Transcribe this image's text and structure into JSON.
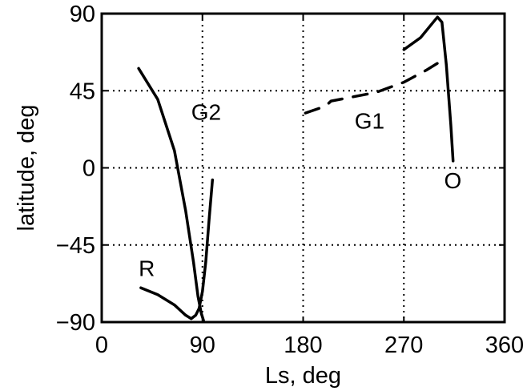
{
  "chart_data": {
    "type": "line",
    "title": "",
    "xlabel": "Ls, deg",
    "ylabel": "latitude, deg",
    "xlim": [
      0,
      360
    ],
    "ylim": [
      -90,
      90
    ],
    "xticks": [
      0,
      90,
      180,
      270,
      360
    ],
    "yticks": [
      -90,
      -45,
      0,
      45,
      90
    ],
    "xtick_labels": [
      "0",
      "90",
      "180",
      "270",
      "360"
    ],
    "ytick_labels": [
      "−90",
      "−45",
      "0",
      "45",
      "90"
    ],
    "grid": "dotted",
    "series": [
      {
        "id": "G2",
        "x": [
          33,
          50,
          65,
          75,
          82,
          86,
          89,
          91
        ],
        "y": [
          58,
          40,
          10,
          -25,
          -55,
          -75,
          -85,
          -89
        ],
        "dash": "solid"
      },
      {
        "id": "R",
        "x": [
          35,
          50,
          65,
          75,
          80,
          84,
          87,
          90,
          93,
          96,
          99
        ],
        "y": [
          -70,
          -74,
          -80,
          -86,
          -88,
          -86,
          -82,
          -72,
          -55,
          -30,
          -7
        ],
        "dash": "solid"
      },
      {
        "id": "G1",
        "x": [
          182,
          200,
          205,
          245,
          270,
          290,
          300
        ],
        "y": [
          32,
          36,
          39,
          44,
          50,
          57,
          61
        ],
        "dash": "dashed"
      },
      {
        "id": "O",
        "x": [
          270,
          285,
          295,
          300,
          304,
          308,
          312,
          314
        ],
        "y": [
          69,
          76,
          84,
          88,
          85,
          60,
          25,
          4
        ],
        "dash": "solid"
      }
    ],
    "annotations": [
      {
        "text": "G2",
        "x": 80,
        "y": 28
      },
      {
        "text": "G1",
        "x": 226,
        "y": 23
      },
      {
        "text": "R",
        "x": 33,
        "y": -63
      },
      {
        "text": "O",
        "x": 306,
        "y": -12
      }
    ]
  }
}
